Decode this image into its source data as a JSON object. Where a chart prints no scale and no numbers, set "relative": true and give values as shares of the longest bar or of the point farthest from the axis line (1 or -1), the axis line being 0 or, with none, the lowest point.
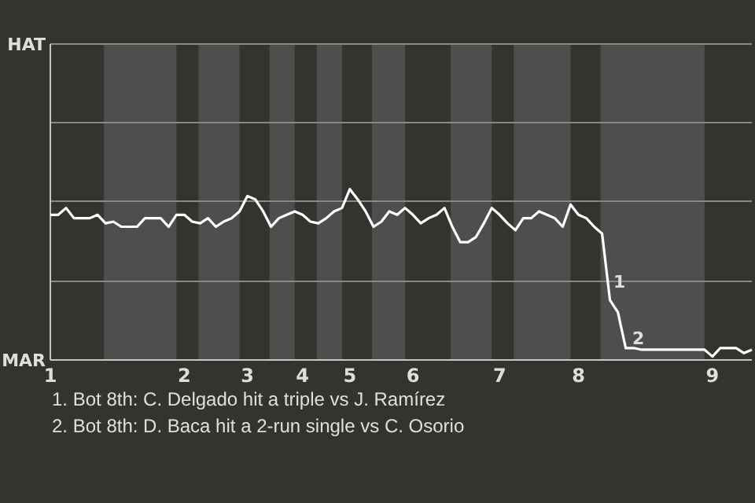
{
  "chart_data": {
    "type": "line",
    "relative": true,
    "categories": [
      "1",
      null,
      null,
      null,
      null,
      null,
      null,
      null,
      null,
      null,
      null,
      null,
      null,
      null,
      null,
      null,
      null,
      "2",
      null,
      null,
      null,
      null,
      null,
      null,
      null,
      "3",
      null,
      null,
      null,
      null,
      null,
      null,
      "4",
      null,
      null,
      null,
      null,
      null,
      "5",
      null,
      null,
      null,
      null,
      null,
      null,
      null,
      "6",
      null,
      null,
      null,
      null,
      null,
      null,
      null,
      null,
      null,
      null,
      "7",
      null,
      null,
      null,
      null,
      null,
      null,
      null,
      null,
      null,
      "8",
      null,
      null,
      null,
      null,
      null,
      null,
      null,
      null,
      null,
      null,
      null,
      null,
      null,
      null,
      null,
      null,
      "9",
      null,
      null,
      null,
      null,
      null
    ],
    "marker": "none",
    "ref_lines": [
      {
        "axis": "y",
        "value": 0.46,
        "color": "#8a8886"
      },
      {
        "axis": "y",
        "value": 0.93,
        "color": "#8a8886"
      },
      {
        "axis": "y",
        "value": 1.39,
        "color": "#8a8886"
      }
    ],
    "line_style": "solid",
    "series": [
      {
        "color": "#ffffff",
        "values": [
          0.85,
          0.85,
          0.89,
          0.83,
          0.83,
          0.83,
          0.85,
          0.8,
          0.81,
          0.78,
          0.78,
          0.78,
          0.83,
          0.83,
          0.83,
          0.78,
          0.85,
          0.85,
          0.81,
          0.8,
          0.83,
          0.78,
          0.81,
          0.83,
          0.87,
          0.96,
          0.94,
          0.87,
          0.78,
          0.83,
          0.85,
          0.87,
          0.85,
          0.81,
          0.8,
          0.83,
          0.87,
          0.89,
          1,
          0.94,
          0.87,
          0.78,
          0.81,
          0.87,
          0.85,
          0.89,
          0.85,
          0.8,
          0.83,
          0.85,
          0.89,
          0.78,
          0.69,
          0.69,
          0.72,
          0.8,
          0.89,
          0.85,
          0.8,
          0.76,
          0.83,
          0.83,
          0.87,
          0.85,
          0.83,
          0.78,
          0.91,
          0.85,
          0.83,
          0.78,
          0.74,
          0.35,
          0.28,
          0.07,
          0.07,
          0.06,
          0.06,
          0.06,
          0.06,
          0.06,
          0.06,
          0.06,
          0.06,
          0.06,
          0.02,
          0.07,
          0.07,
          0.07,
          0.04,
          0.06
        ]
      }
    ],
    "annotations": [
      "HAT",
      "MAR",
      "1",
      "2",
      "1. Bot 8th: C. Delgado hit a triple vs J. Ramírez",
      "2. Bot 8th: D. Baca hit a 2-run single vs C. Osorio"
    ]
  }
}
